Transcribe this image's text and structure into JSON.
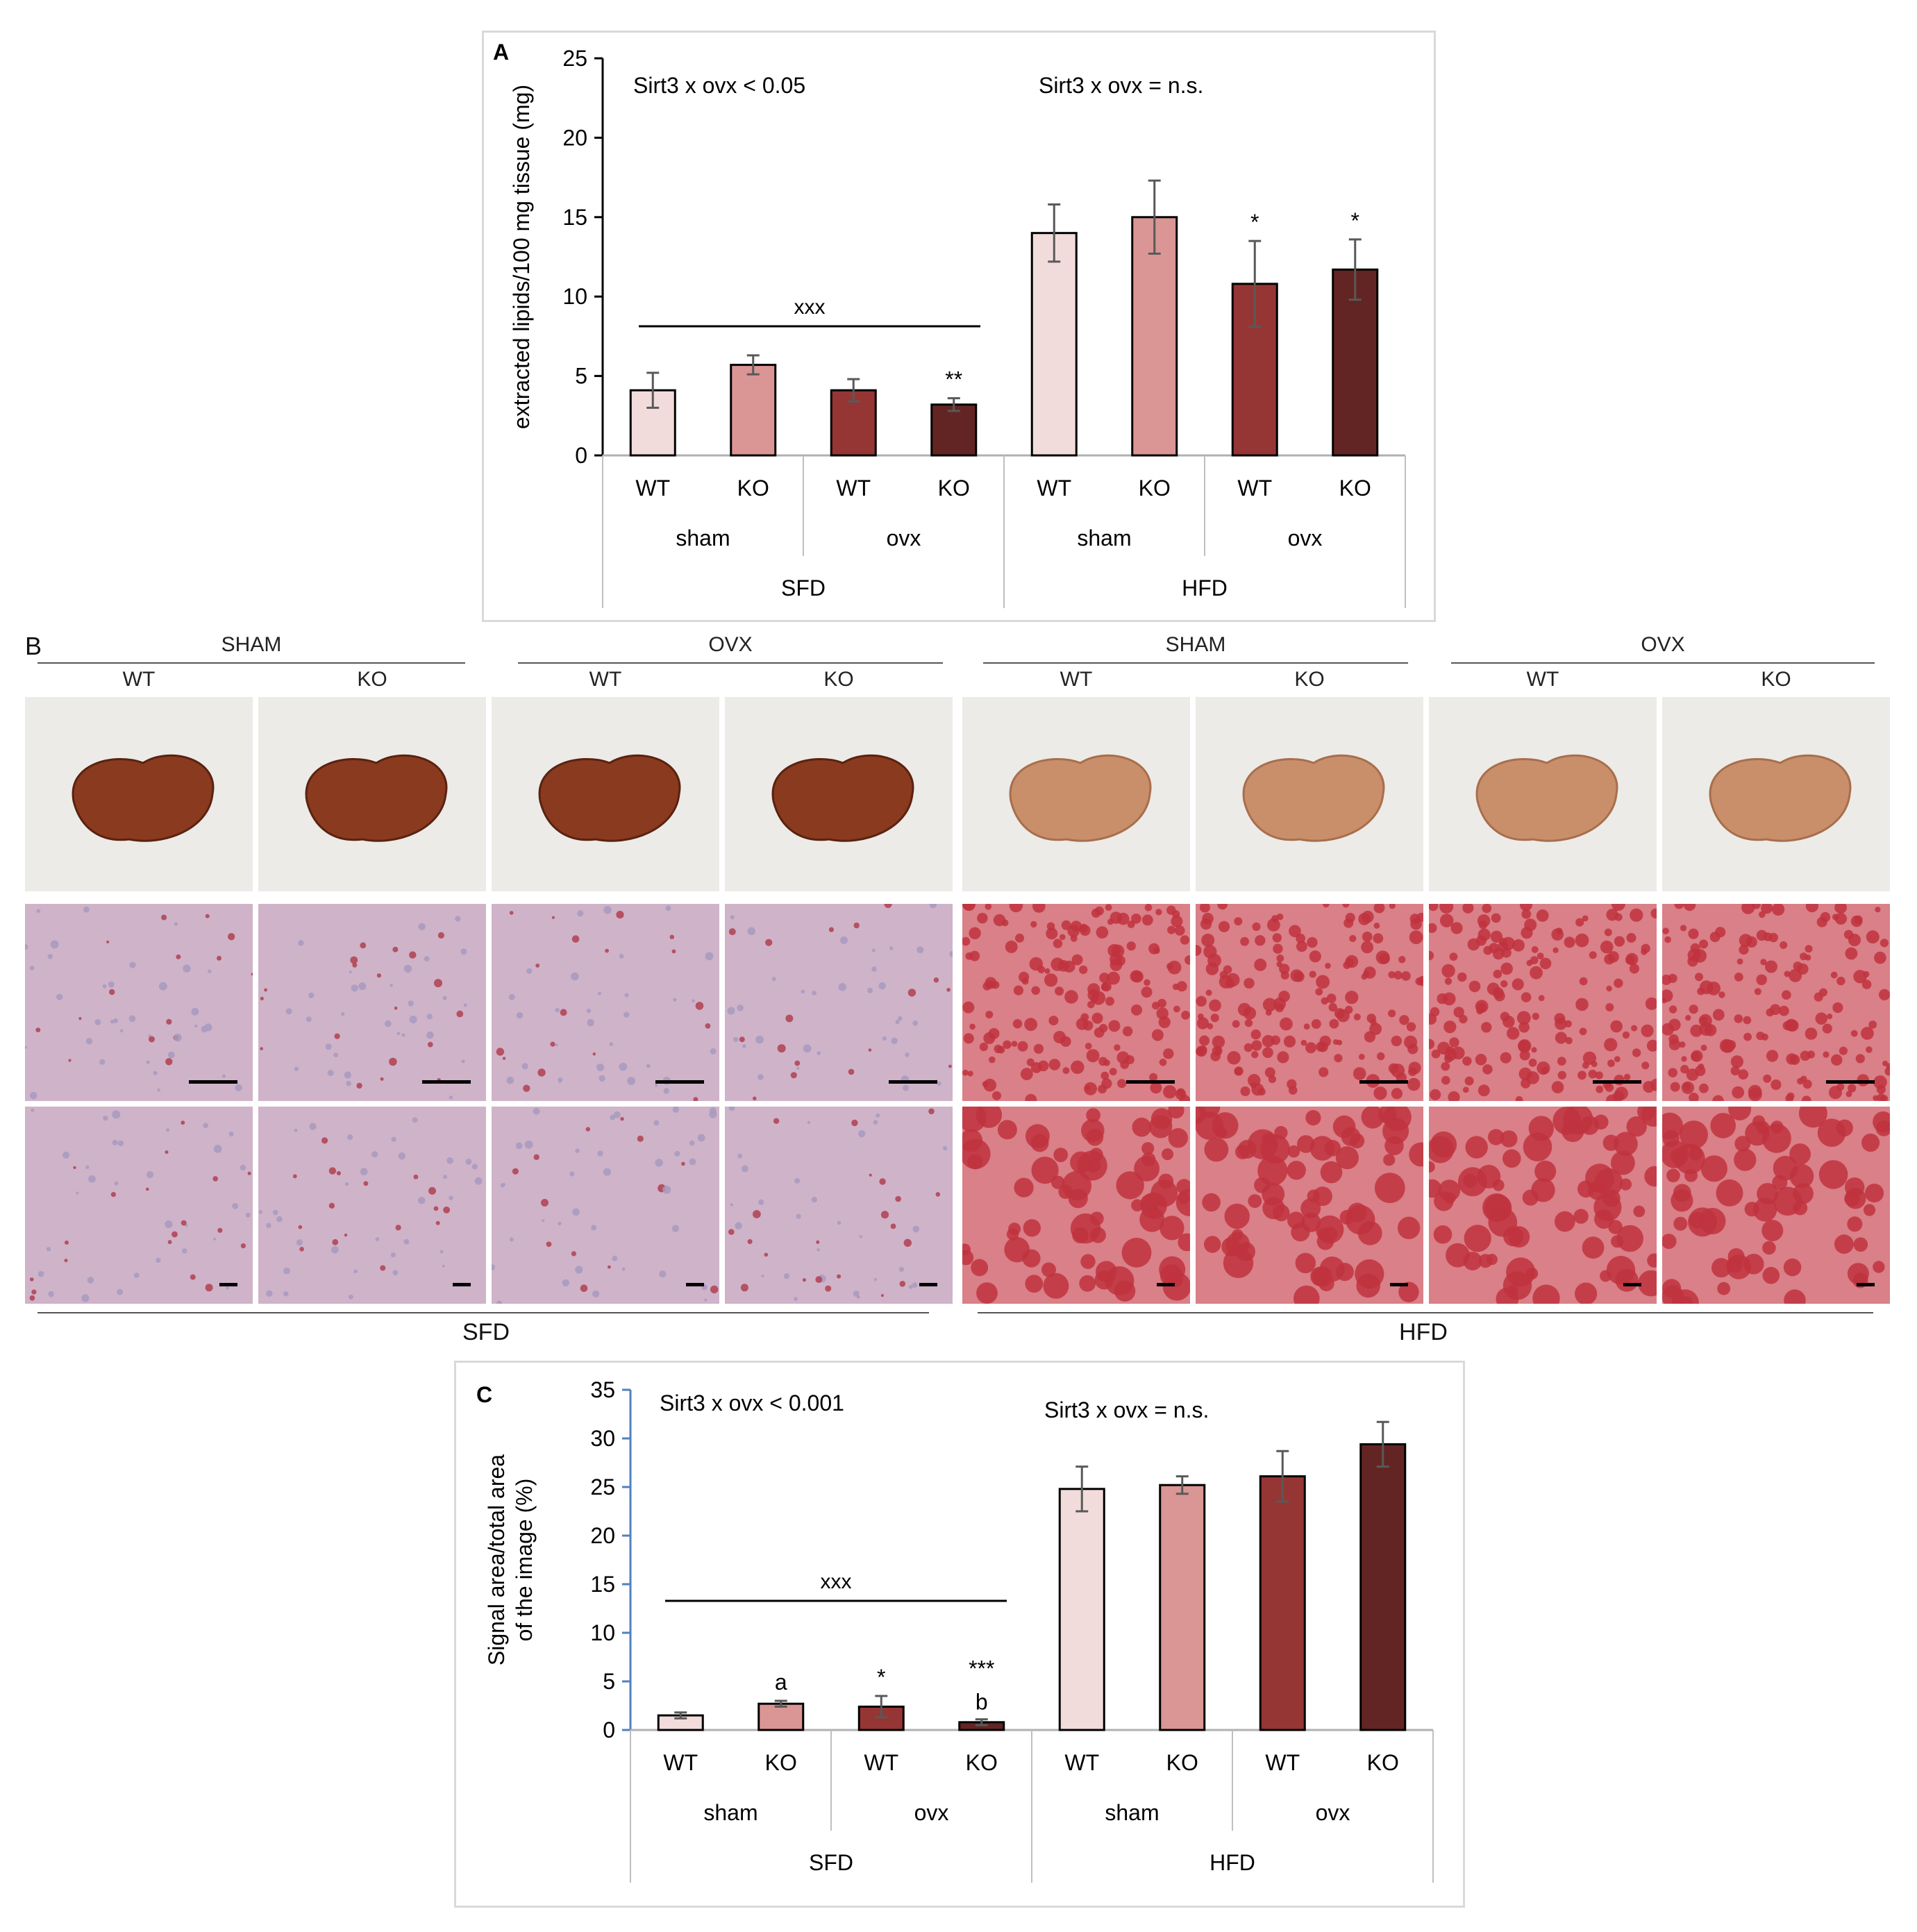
{
  "panel_labels": {
    "a": "A",
    "b": "B",
    "c": "C"
  },
  "colors": {
    "wt_sham": "#f2dcdb",
    "ko_sham": "#da9694",
    "wt_ovx": "#963634",
    "ko_ovx": "#632523",
    "axis": "#000000",
    "axis_c": "#4f81bd",
    "error_bar": "#595959",
    "liver_sfd": "#8a3a1e",
    "liver_hfd": "#c98e6a",
    "stain_sfd": "#cfb3c9",
    "stain_hfd": "#c0333e"
  },
  "chart_data": [
    {
      "id": "A",
      "type": "bar",
      "ylabel": "extracted lipids/100 mg tissue (mg)",
      "ylim": [
        0,
        25
      ],
      "yticks": [
        "0",
        "5",
        "10",
        "15",
        "20",
        "25"
      ],
      "categories": [
        "WT",
        "KO",
        "WT",
        "KO",
        "WT",
        "KO",
        "WT",
        "KO"
      ],
      "surgery_labels": [
        "sham",
        "ovx",
        "sham",
        "ovx"
      ],
      "diet_labels": [
        "SFD",
        "HFD"
      ],
      "values": [
        4.1,
        5.7,
        4.1,
        3.2,
        14.0,
        15.0,
        10.8,
        11.7
      ],
      "errors": [
        1.1,
        0.6,
        0.7,
        0.4,
        1.8,
        2.3,
        2.7,
        1.9
      ],
      "bar_colors": [
        "#f2dcdb",
        "#da9694",
        "#963634",
        "#632523",
        "#f2dcdb",
        "#da9694",
        "#963634",
        "#632523"
      ],
      "bar_marks": [
        "",
        "",
        "",
        "**",
        "",
        "",
        "*",
        "*"
      ],
      "interaction_left": "Sirt3 x ovx < 0.05",
      "interaction_right": "Sirt3 x ovx = n.s.",
      "bracket_label": "xxx"
    },
    {
      "id": "C",
      "type": "bar",
      "ylabel_lines": [
        "Signal area/total area",
        "of the image (%)"
      ],
      "ylim": [
        0,
        35
      ],
      "yticks": [
        "0",
        "5",
        "10",
        "15",
        "20",
        "25",
        "30",
        "35"
      ],
      "categories": [
        "WT",
        "KO",
        "WT",
        "KO",
        "WT",
        "KO",
        "WT",
        "KO"
      ],
      "surgery_labels": [
        "sham",
        "ovx",
        "sham",
        "ovx"
      ],
      "diet_labels": [
        "SFD",
        "HFD"
      ],
      "values": [
        1.5,
        2.7,
        2.4,
        0.8,
        24.8,
        25.2,
        26.1,
        29.4
      ],
      "errors": [
        0.3,
        0.3,
        1.1,
        0.3,
        2.3,
        0.9,
        2.6,
        2.3
      ],
      "bar_colors": [
        "#f2dcdb",
        "#da9694",
        "#963634",
        "#632523",
        "#f2dcdb",
        "#da9694",
        "#963634",
        "#632523"
      ],
      "bar_marks": [
        "",
        "a",
        "*",
        "***",
        "",
        "",
        "",
        ""
      ],
      "bar_marks_2": [
        "",
        "",
        "",
        "b",
        "",
        "",
        "",
        ""
      ],
      "interaction_left": "Sirt3 x ovx < 0.001",
      "interaction_right": "Sirt3 x ovx = n.s.",
      "bracket_label": "xxx"
    }
  ],
  "micrographs": {
    "group_headers": [
      "SHAM",
      "OVX",
      "SHAM",
      "OVX"
    ],
    "genotype_headers": [
      "WT",
      "KO",
      "WT",
      "KO",
      "WT",
      "KO",
      "WT",
      "KO"
    ],
    "diet_labels": [
      "SFD",
      "HFD"
    ],
    "rows": [
      "liver-photo",
      "oil-red-low-mag",
      "oil-red-high-mag"
    ]
  }
}
